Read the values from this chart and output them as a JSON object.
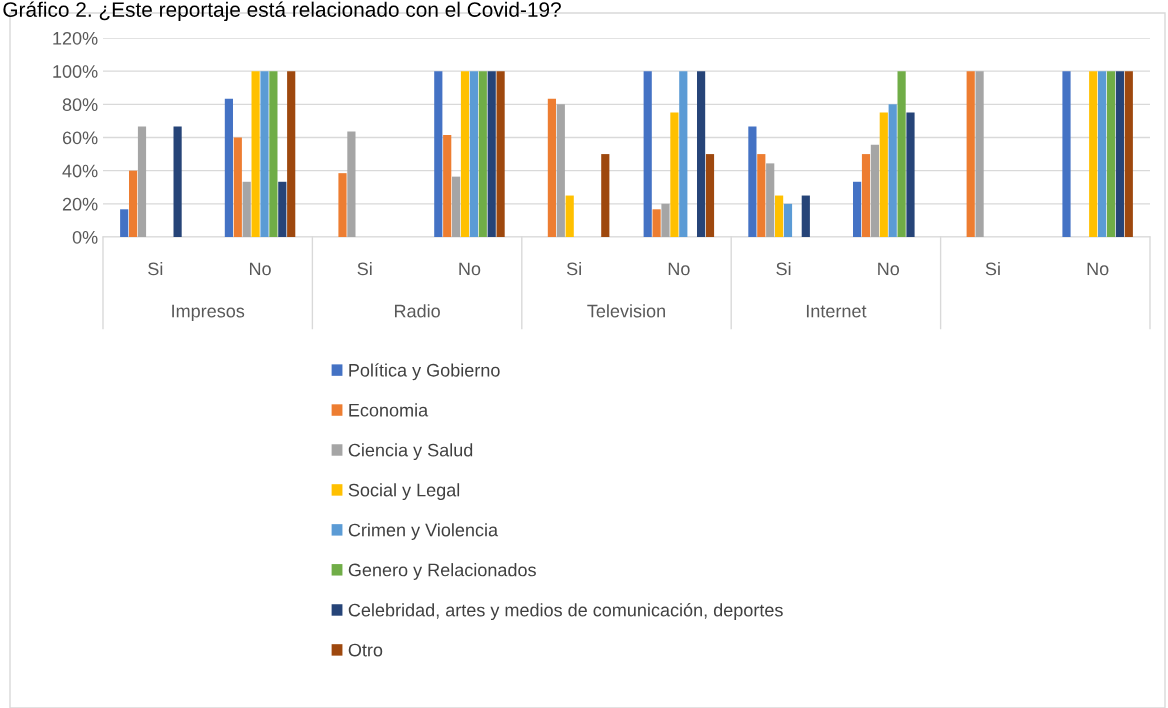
{
  "chart_data": {
    "type": "bar",
    "title": "Gráfico 2. ¿Este reportaje está relacionado con el Covid-19?",
    "categories": [
      "Si",
      "No",
      "Si",
      "No",
      "Si",
      "No",
      "Si",
      "No",
      "Si",
      "No"
    ],
    "annotations": [
      "Impresos",
      "Radio",
      "Television",
      "Internet"
    ],
    "series": [
      {
        "name": "Política y Gobierno",
        "color": "#4472c4",
        "values": [
          16.7,
          83.3,
          0,
          100,
          0,
          100,
          66.7,
          33.3,
          0,
          100
        ]
      },
      {
        "name": "Economia",
        "color": "#ed7d31",
        "values": [
          40,
          60,
          38.5,
          61.5,
          83.3,
          16.7,
          50,
          50,
          100,
          0
        ]
      },
      {
        "name": "Ciencia y Salud",
        "color": "#a5a5a5",
        "values": [
          66.7,
          33.3,
          63.6,
          36.4,
          80,
          20,
          44.4,
          55.6,
          100,
          0
        ]
      },
      {
        "name": "Social y Legal",
        "color": "#ffc000",
        "values": [
          0,
          100,
          0,
          100,
          25,
          75,
          25,
          75,
          0,
          100
        ]
      },
      {
        "name": "Crimen y Violencia",
        "color": "#5b9bd5",
        "values": [
          0,
          100,
          0,
          100,
          0,
          100,
          20,
          80,
          0,
          100
        ]
      },
      {
        "name": "Genero y Relacionados",
        "color": "#70ad47",
        "values": [
          0,
          100,
          0,
          100,
          0,
          0,
          0,
          100,
          0,
          100
        ]
      },
      {
        "name": "Celebridad, artes y medios de comunicación, deportes",
        "color": "#264478",
        "values": [
          66.7,
          33.3,
          0,
          100,
          0,
          100,
          25,
          75,
          0,
          100
        ]
      },
      {
        "name": "Otro",
        "color": "#9e480e",
        "values": [
          0,
          100,
          0,
          100,
          50,
          50,
          0,
          0,
          0,
          100
        ]
      }
    ],
    "ylim": [
      0,
      120
    ],
    "yticks": [
      {
        "value": 0,
        "label": "0%"
      },
      {
        "value": 20,
        "label": "20%"
      },
      {
        "value": 40,
        "label": "40%"
      },
      {
        "value": 60,
        "label": "60%"
      },
      {
        "value": 80,
        "label": "80%"
      },
      {
        "value": 100,
        "label": "100%"
      },
      {
        "value": 120,
        "label": "120%"
      }
    ],
    "grid": "y",
    "legend": "bottom"
  }
}
